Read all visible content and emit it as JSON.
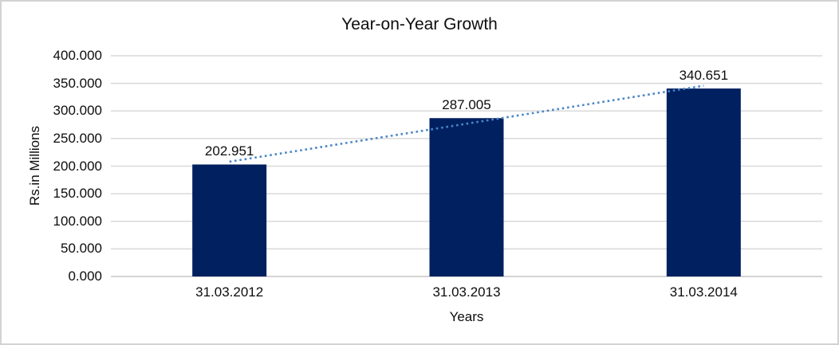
{
  "chart_data": {
    "type": "bar",
    "title": "Year-on-Year Growth",
    "xlabel": "Years",
    "ylabel": "Rs.in Millions",
    "categories": [
      "31.03.2012",
      "31.03.2013",
      "31.03.2014"
    ],
    "values": [
      202.951,
      287.005,
      340.651
    ],
    "data_labels": [
      "202.951",
      "287.005",
      "340.651"
    ],
    "y_ticks": [
      {
        "label": "0.000",
        "value": 0
      },
      {
        "label": "50.000",
        "value": 50
      },
      {
        "label": "100.000",
        "value": 100
      },
      {
        "label": "150.000",
        "value": 150
      },
      {
        "label": "200.000",
        "value": 200
      },
      {
        "label": "250.000",
        "value": 250
      },
      {
        "label": "300.000",
        "value": 300
      },
      {
        "label": "350.000",
        "value": 350
      },
      {
        "label": "400.000",
        "value": 400
      }
    ],
    "ylim": [
      0,
      400
    ],
    "grid": true,
    "legend": false,
    "trendline": {
      "type": "linear",
      "style": "dotted"
    }
  },
  "colors": {
    "bar": "#002060",
    "trendline": "#4a86c8",
    "gridline": "#d9d9d9",
    "axis_line": "#c6c6c6",
    "text": "#0d0d0d",
    "frame_border": "#d2d2d2",
    "background": "#ffffff"
  }
}
